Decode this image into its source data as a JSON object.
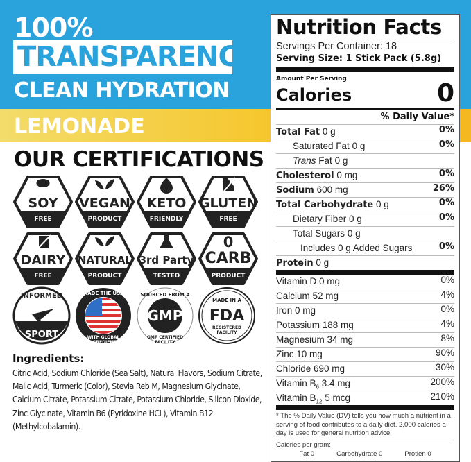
{
  "colors": {
    "blue": "#2aa3dc",
    "yellow": "#f6c52a",
    "badge_dark": "#222222"
  },
  "banner": {
    "line1": "100%",
    "line2": "TRANSPARENCY",
    "line3": "CLEAN HYDRATION",
    "flavor": "LEMONADE"
  },
  "certifications": {
    "title": "OUR CERTIFICATIONS",
    "badges": [
      {
        "main": "SOY",
        "sub": "FREE",
        "icon": "bean-icon"
      },
      {
        "main": "VEGAN",
        "sub": "PRODUCT",
        "icon": "leaves-icon"
      },
      {
        "main": "KETO",
        "sub": "FRIENDLY",
        "icon": "drop-icon"
      },
      {
        "main": "GLUTEN",
        "sub": "FREE",
        "icon": "wheat-slash-icon"
      },
      {
        "main": "DAIRY",
        "sub": "FREE",
        "icon": "milk-slash-icon"
      },
      {
        "main": "NATURAL",
        "sub": "PRODUCT",
        "icon": "leaves-icon"
      },
      {
        "main": "3rd Party",
        "sub": "TESTED",
        "icon": "flask-icon"
      },
      {
        "main": "0 CARB",
        "sub": "PRODUCT",
        "icon": ""
      }
    ],
    "seals": [
      {
        "name": "informed-sport-seal",
        "top": "INFORMED",
        "bottom": "SPORT"
      },
      {
        "name": "made-in-usa-seal",
        "top": "MADE THE USA",
        "bottom": "WITH GLOBAL INGREDIENTS"
      },
      {
        "name": "gmp-seal",
        "top": "SOURCED FROM A",
        "center": "GMP",
        "bottom": "GMP CERTIFIED FACILITY"
      },
      {
        "name": "fda-seal",
        "top": "MADE IN A",
        "center": "FDA",
        "bottom": "REGISTERED FACILITY"
      }
    ]
  },
  "ingredients": {
    "title": "Ingredients:",
    "text": "Citric Acid, Sodium Chloride (Sea Salt), Natural Flavors, Sodium Citrate, Malic Acid, Turmeric (Color), Stevia Reb M, Magnesium Glycinate, Calcium Citrate, Potassium Citrate, Potassium Chloride, Silicon Dioxide, Zinc Glycinate, Vitamin B6 (Pyridoxine HCL), Vitamin B12 (Methylcobalamin)."
  },
  "nutrition": {
    "title": "Nutrition Facts",
    "servings": "Servings Per Container: 18",
    "serving_size": "Serving Size: 1 Stick Pack (5.8g)",
    "amount_per_serving": "Amount Per Serving",
    "calories_label": "Calories",
    "calories": "0",
    "dv_header": "% Daily Value*",
    "rows": [
      {
        "label": "Total Fat",
        "amount": "0 g",
        "dv": "0%",
        "bold": true,
        "indent": 0
      },
      {
        "label": "Saturated Fat",
        "amount": "0 g",
        "dv": "0%",
        "indent": 1
      },
      {
        "label": "Trans",
        "label2": "Fat",
        "amount": "0 g",
        "dv": "",
        "indent": 1
      },
      {
        "label": "Cholesterol",
        "amount": "0 mg",
        "dv": "0%",
        "bold": true,
        "indent": 0
      },
      {
        "label": "Sodium",
        "amount": "600 mg",
        "dv": "26%",
        "bold": true,
        "indent": 0
      },
      {
        "label": "Total Carbohydrate",
        "amount": "0 g",
        "dv": "0%",
        "bold": true,
        "indent": 0
      },
      {
        "label": "Dietary Fiber",
        "amount": "0 g",
        "dv": "0%",
        "indent": 1
      },
      {
        "label": "Total Sugars",
        "amount": "0 g",
        "dv": "",
        "indent": 1
      },
      {
        "label": "Includes 0 g Added Sugars",
        "amount": "",
        "dv": "0%",
        "indent": 2
      },
      {
        "label": "Protein",
        "amount": "0 g",
        "dv": "",
        "bold": true,
        "indent": 0
      }
    ],
    "vitamins": [
      {
        "label": "Vitamin D 0 mg",
        "dv": "0%"
      },
      {
        "label": "Calcium 52 mg",
        "dv": "4%"
      },
      {
        "label": "Iron 0 mg",
        "dv": "0%"
      },
      {
        "label": "Potassium 188 mg",
        "dv": "4%"
      },
      {
        "label": "Magnesium 34 mg",
        "dv": "8%"
      },
      {
        "label": "Zinc 10 mg",
        "dv": "90%"
      },
      {
        "label": "Chloride 690 mg",
        "dv": "30%"
      },
      {
        "label": "Vitamin B",
        "sub": "6",
        "rest": "3.4 mg",
        "dv": "200%"
      },
      {
        "label": "Vitamin B",
        "sub": "12",
        "rest": "5 mcg",
        "dv": "210%"
      }
    ],
    "footnote": "* The % Daily Value (DV) tells you how much a nutrient in a serving of food contributes to a daily diet. 2,000 calories a day is used for general nutrition advice.",
    "calories_per_gram": "Calories per gram:",
    "cpg": [
      "Fat 0",
      "Carbohydrate 0",
      "Protien 0"
    ]
  }
}
